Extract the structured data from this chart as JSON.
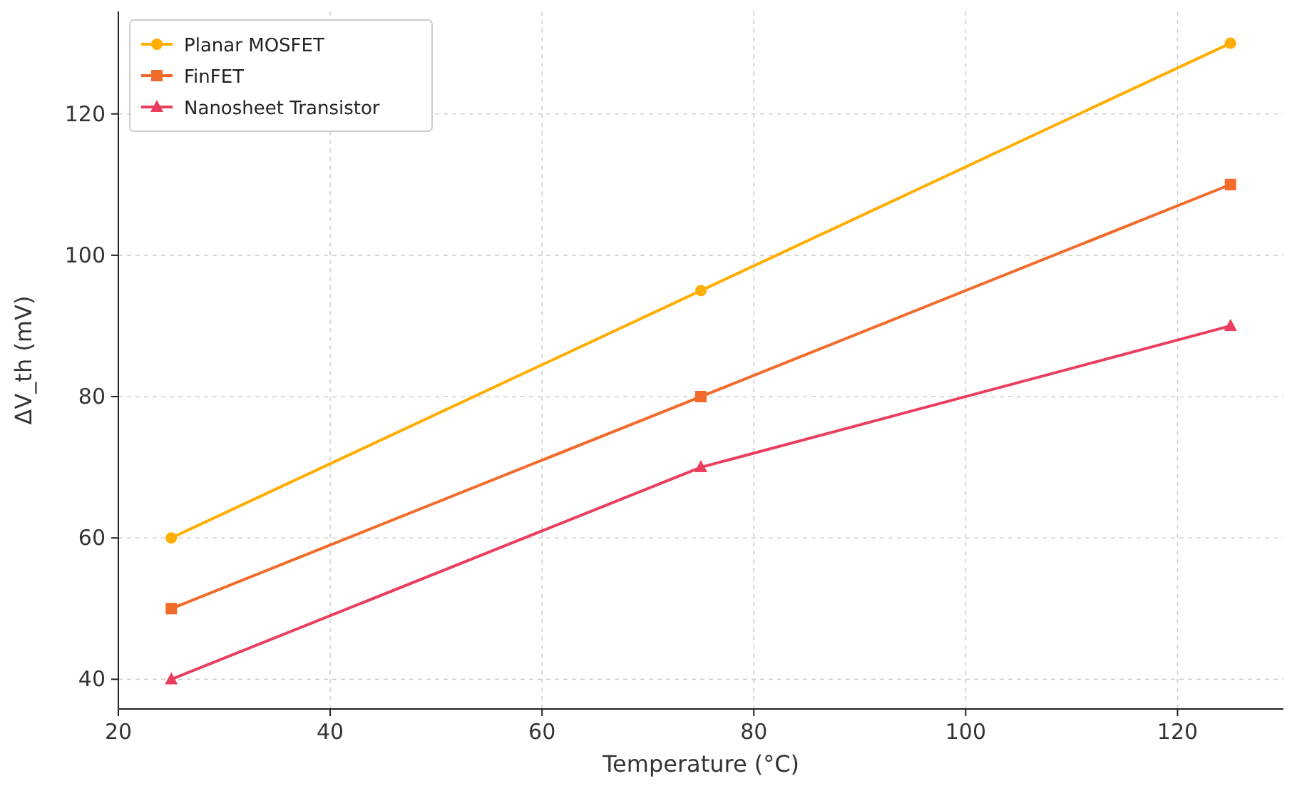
{
  "chart_data": {
    "type": "line",
    "xlabel": "Temperature (°C)",
    "ylabel": "ΔV_th (mV)",
    "x": [
      25,
      75,
      125
    ],
    "series": [
      {
        "name": "Planar MOSFET",
        "color": "#ffae00",
        "values": [
          60,
          95,
          130
        ],
        "marker": "circle"
      },
      {
        "name": "FinFET",
        "color": "#f26b2a",
        "values": [
          50,
          80,
          110
        ],
        "marker": "square"
      },
      {
        "name": "Nanosheet Transistor",
        "color": "#ea3e5e",
        "values": [
          40,
          70,
          90
        ],
        "marker": "triangle"
      }
    ],
    "xlim": [
      20,
      130
    ],
    "xticks": [
      20,
      40,
      60,
      80,
      100,
      120
    ],
    "ylim": [
      35.8,
      134.5
    ],
    "yticks": [
      40,
      60,
      80,
      100,
      120
    ],
    "grid": true,
    "legend": "top left",
    "line_style": "solid"
  }
}
